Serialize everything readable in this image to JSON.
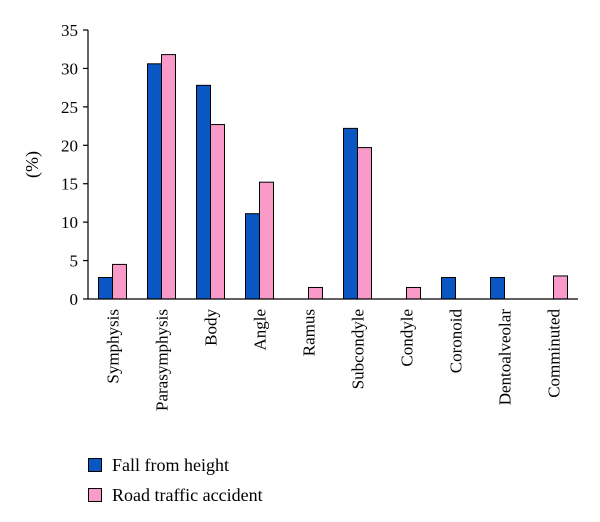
{
  "chart_data": {
    "type": "bar",
    "title": "",
    "xlabel": "",
    "ylabel": "(%)",
    "ylim": [
      0,
      35
    ],
    "yticks": [
      0,
      5,
      10,
      15,
      20,
      25,
      30,
      35
    ],
    "grid": false,
    "legend_position": "bottom-left",
    "categories": [
      "Symphysis",
      "Parasymphysis",
      "Body",
      "Angle",
      "Ramus",
      "Subcondyle",
      "Condyle",
      "Coronoid",
      "Dentoalveolar",
      "Comminuted"
    ],
    "series": [
      {
        "name": "Fall from height",
        "color": "#0a56c2",
        "values": [
          2.8,
          30.6,
          27.8,
          11.1,
          0,
          22.2,
          0,
          2.8,
          2.8,
          0
        ]
      },
      {
        "name": "Road traffic accident",
        "color": "#f99ac8",
        "values": [
          4.5,
          31.8,
          22.7,
          15.2,
          1.5,
          19.7,
          1.5,
          0,
          0,
          3.0
        ]
      }
    ]
  }
}
